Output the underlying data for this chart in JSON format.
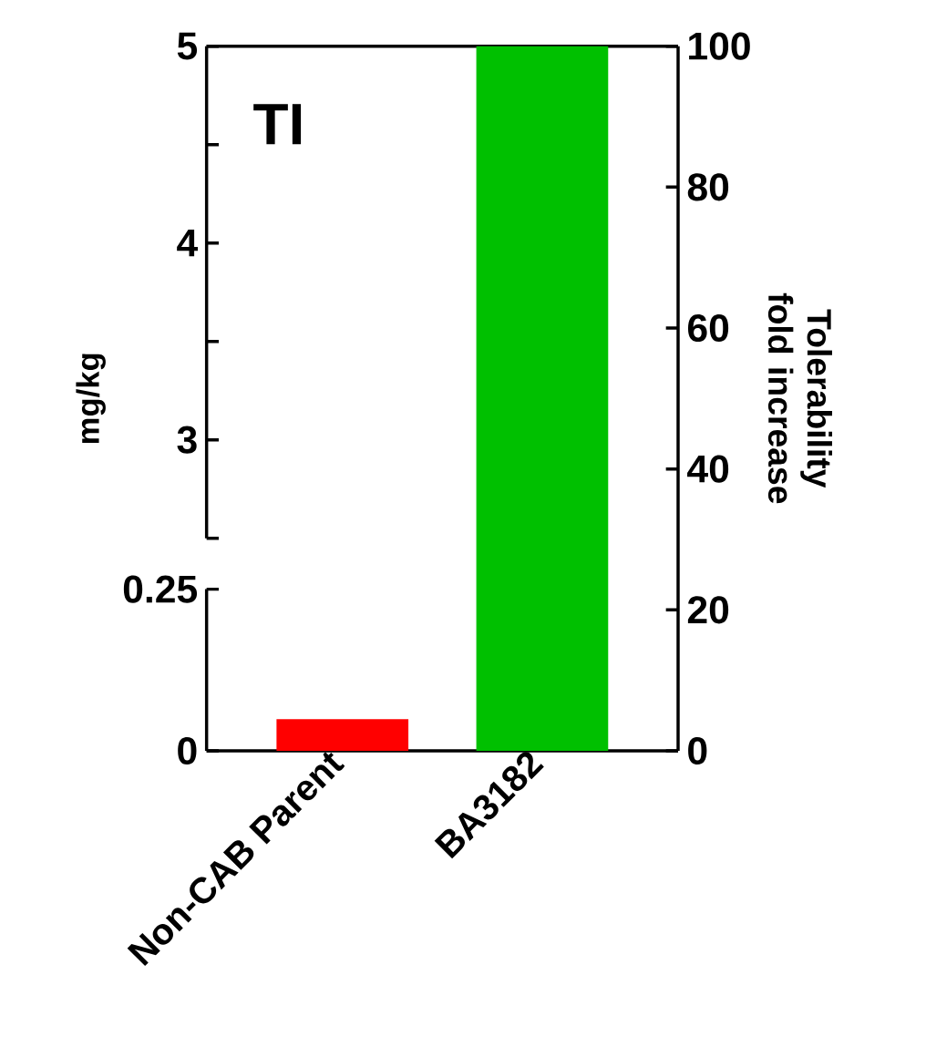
{
  "chart_data": {
    "type": "bar",
    "ylabel": "mg/kg",
    "y2label": "Tolerability fold increase",
    "annotations": [
      "TI"
    ],
    "categories": [
      "Non-CAB Parent",
      "BA3182"
    ],
    "series": [
      {
        "axis": "y2",
        "colors": [
          "#ff0000",
          "#00c000"
        ],
        "values": [
          4.5,
          100
        ]
      }
    ],
    "ylim": [
      0,
      1.09
    ],
    "yticks": [
      0,
      0.25
    ],
    "y3lim": [
      1.42,
      5
    ],
    "y3ticks": [
      {
        "value": 2.5,
        "label": null
      },
      3,
      {
        "value": 3.5,
        "label": null
      },
      4,
      {
        "value": 4.5,
        "label": null
      },
      5
    ],
    "y2lim": [
      0,
      100
    ],
    "y2ticks": [
      0,
      20,
      40,
      60,
      80,
      100
    ],
    "grid": false
  }
}
